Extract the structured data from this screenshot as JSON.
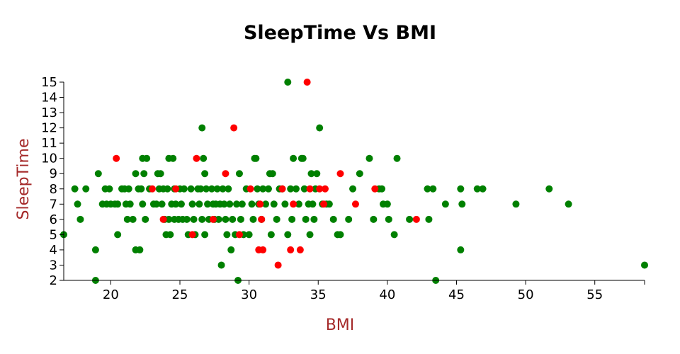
{
  "colors": {
    "point_green": "#008000",
    "point_red": "#ff0000",
    "axis_title_color": "#a52a2a",
    "axis_color": "#000000"
  },
  "chart_data": {
    "type": "scatter",
    "title": "SleepTime Vs BMI",
    "xlabel": "BMI",
    "ylabel": "SleepTime",
    "xlim": [
      16.6,
      58.6
    ],
    "ylim": [
      2,
      15
    ],
    "x_ticks": [
      20,
      25,
      30,
      35,
      40,
      45,
      50,
      55
    ],
    "y_ticks": [
      2,
      3,
      4,
      5,
      6,
      7,
      8,
      9,
      10,
      11,
      12,
      13,
      14,
      15
    ],
    "grid": false,
    "legend": "none",
    "series": [
      {
        "color": "green",
        "points": [
          [
            16.6,
            5
          ],
          [
            17.4,
            8
          ],
          [
            17.6,
            7
          ],
          [
            17.8,
            6
          ],
          [
            18.2,
            8
          ],
          [
            18.9,
            4
          ],
          [
            18.9,
            2
          ],
          [
            19.1,
            9
          ],
          [
            19.4,
            7
          ],
          [
            19.6,
            8
          ],
          [
            19.7,
            7
          ],
          [
            19.9,
            8
          ],
          [
            20.0,
            7
          ],
          [
            20.3,
            7
          ],
          [
            20.5,
            7
          ],
          [
            20.5,
            5
          ],
          [
            20.8,
            8
          ],
          [
            21.0,
            8
          ],
          [
            21.1,
            7
          ],
          [
            21.2,
            6
          ],
          [
            21.3,
            8
          ],
          [
            21.4,
            7
          ],
          [
            21.6,
            6
          ],
          [
            21.8,
            4
          ],
          [
            21.8,
            9
          ],
          [
            22.0,
            8
          ],
          [
            22.1,
            4
          ],
          [
            22.2,
            8
          ],
          [
            22.3,
            10
          ],
          [
            22.3,
            7
          ],
          [
            22.4,
            9
          ],
          [
            22.5,
            6
          ],
          [
            22.6,
            10
          ],
          [
            22.8,
            8
          ],
          [
            23.1,
            7
          ],
          [
            23.3,
            7
          ],
          [
            23.4,
            9
          ],
          [
            23.5,
            8
          ],
          [
            23.6,
            9
          ],
          [
            23.7,
            7
          ],
          [
            23.8,
            8
          ],
          [
            23.9,
            6
          ],
          [
            24.0,
            5
          ],
          [
            24.1,
            8
          ],
          [
            24.2,
            10
          ],
          [
            24.2,
            6
          ],
          [
            24.3,
            5
          ],
          [
            24.4,
            7
          ],
          [
            24.5,
            10
          ],
          [
            24.6,
            8
          ],
          [
            24.6,
            6
          ],
          [
            24.7,
            7
          ],
          [
            24.9,
            6
          ],
          [
            25.0,
            8
          ],
          [
            25.1,
            7
          ],
          [
            25.2,
            6
          ],
          [
            25.3,
            8
          ],
          [
            25.5,
            6
          ],
          [
            25.6,
            5
          ],
          [
            25.8,
            8
          ],
          [
            25.9,
            7
          ],
          [
            26.0,
            6
          ],
          [
            26.1,
            5
          ],
          [
            26.3,
            8
          ],
          [
            26.4,
            7
          ],
          [
            26.5,
            8
          ],
          [
            26.6,
            12
          ],
          [
            26.6,
            6
          ],
          [
            26.7,
            10
          ],
          [
            26.8,
            9
          ],
          [
            26.8,
            5
          ],
          [
            26.9,
            8
          ],
          [
            27.0,
            7
          ],
          [
            27.1,
            6
          ],
          [
            27.3,
            8
          ],
          [
            27.4,
            7
          ],
          [
            27.5,
            6
          ],
          [
            27.6,
            7
          ],
          [
            27.7,
            8
          ],
          [
            27.8,
            6
          ],
          [
            27.9,
            7
          ],
          [
            28.0,
            3
          ],
          [
            28.1,
            8
          ],
          [
            28.2,
            7
          ],
          [
            28.3,
            6
          ],
          [
            28.4,
            5
          ],
          [
            28.5,
            8
          ],
          [
            28.6,
            7
          ],
          [
            28.7,
            4
          ],
          [
            28.8,
            6
          ],
          [
            29.0,
            5
          ],
          [
            29.1,
            7
          ],
          [
            29.2,
            2
          ],
          [
            29.3,
            9
          ],
          [
            29.4,
            6
          ],
          [
            29.5,
            7
          ],
          [
            29.6,
            5
          ],
          [
            29.8,
            8
          ],
          [
            30.0,
            5
          ],
          [
            30.2,
            7
          ],
          [
            30.3,
            6
          ],
          [
            30.4,
            10
          ],
          [
            30.5,
            10
          ],
          [
            30.6,
            8
          ],
          [
            30.7,
            7
          ],
          [
            30.9,
            6
          ],
          [
            31.0,
            8
          ],
          [
            31.2,
            7
          ],
          [
            31.4,
            8
          ],
          [
            31.5,
            9
          ],
          [
            31.6,
            5
          ],
          [
            31.7,
            9
          ],
          [
            31.8,
            7
          ],
          [
            32.0,
            6
          ],
          [
            32.2,
            8
          ],
          [
            32.4,
            8
          ],
          [
            32.6,
            7
          ],
          [
            32.8,
            15
          ],
          [
            32.8,
            5
          ],
          [
            33.0,
            8
          ],
          [
            33.1,
            6
          ],
          [
            33.2,
            10
          ],
          [
            33.4,
            8
          ],
          [
            33.6,
            7
          ],
          [
            33.8,
            10
          ],
          [
            33.9,
            10
          ],
          [
            34.0,
            8
          ],
          [
            34.1,
            6
          ],
          [
            34.3,
            7
          ],
          [
            34.4,
            5
          ],
          [
            34.5,
            9
          ],
          [
            34.6,
            7
          ],
          [
            34.7,
            6
          ],
          [
            34.8,
            8
          ],
          [
            34.9,
            9
          ],
          [
            35.1,
            12
          ],
          [
            35.3,
            7
          ],
          [
            35.6,
            7
          ],
          [
            35.8,
            7
          ],
          [
            36.1,
            6
          ],
          [
            36.4,
            5
          ],
          [
            36.6,
            5
          ],
          [
            37.2,
            6
          ],
          [
            37.5,
            8
          ],
          [
            38.0,
            9
          ],
          [
            38.7,
            10
          ],
          [
            39.0,
            6
          ],
          [
            39.4,
            8
          ],
          [
            39.6,
            8
          ],
          [
            39.7,
            7
          ],
          [
            40.0,
            7
          ],
          [
            40.1,
            6
          ],
          [
            40.5,
            5
          ],
          [
            40.7,
            10
          ],
          [
            41.6,
            6
          ],
          [
            42.9,
            8
          ],
          [
            43.0,
            6
          ],
          [
            43.3,
            8
          ],
          [
            43.5,
            2
          ],
          [
            44.2,
            7
          ],
          [
            45.3,
            8
          ],
          [
            45.3,
            4
          ],
          [
            45.4,
            7
          ],
          [
            46.5,
            8
          ],
          [
            46.9,
            8
          ],
          [
            49.3,
            7
          ],
          [
            51.7,
            8
          ],
          [
            53.1,
            7
          ],
          [
            58.6,
            3
          ]
        ]
      },
      {
        "color": "red",
        "points": [
          [
            20.4,
            10
          ],
          [
            23.0,
            8
          ],
          [
            23.8,
            6
          ],
          [
            24.7,
            8
          ],
          [
            25.9,
            5
          ],
          [
            26.2,
            10
          ],
          [
            27.4,
            6
          ],
          [
            28.3,
            9
          ],
          [
            28.9,
            12
          ],
          [
            29.3,
            5
          ],
          [
            30.1,
            8
          ],
          [
            30.7,
            4
          ],
          [
            30.8,
            7
          ],
          [
            30.9,
            6
          ],
          [
            31.0,
            4
          ],
          [
            32.1,
            3
          ],
          [
            32.4,
            8
          ],
          [
            33.0,
            4
          ],
          [
            33.2,
            7
          ],
          [
            33.7,
            4
          ],
          [
            34.2,
            15
          ],
          [
            34.4,
            8
          ],
          [
            35.1,
            8
          ],
          [
            35.4,
            7
          ],
          [
            35.5,
            8
          ],
          [
            36.6,
            9
          ],
          [
            37.7,
            7
          ],
          [
            39.1,
            8
          ],
          [
            42.1,
            6
          ]
        ]
      }
    ]
  }
}
